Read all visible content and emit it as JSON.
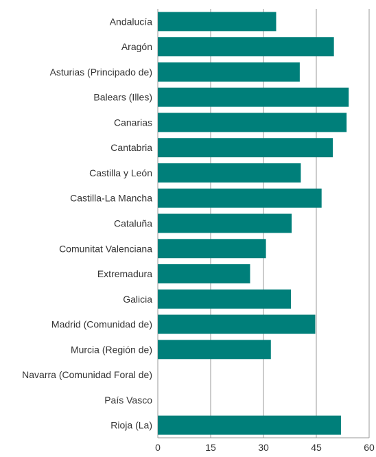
{
  "chart_data": {
    "type": "bar",
    "orientation": "horizontal",
    "title": "",
    "xlabel": "",
    "ylabel": "",
    "categories": [
      "Andalucía",
      "Aragón",
      "Asturias (Principado de)",
      "Balears (Illes)",
      "Canarias",
      "Cantabria",
      "Castilla y León",
      "Castilla-La Mancha",
      "Cataluña",
      "Comunitat Valenciana",
      "Extremadura",
      "Galicia",
      "Madrid (Comunidad de)",
      "Murcia (Región de)",
      "Navarra (Comunidad Foral de)",
      "País Vasco",
      "Rioja (La)"
    ],
    "values": [
      33.6,
      50.0,
      40.3,
      54.2,
      53.6,
      49.7,
      40.6,
      46.5,
      38.0,
      30.7,
      26.2,
      37.8,
      44.7,
      32.1,
      null,
      null,
      52.0
    ],
    "xlim": [
      0,
      60
    ],
    "xticks": [
      0,
      15,
      30,
      45,
      60
    ],
    "grid": true,
    "bar_color": "#007f7a",
    "gridline_color": "#9a9a9a"
  }
}
